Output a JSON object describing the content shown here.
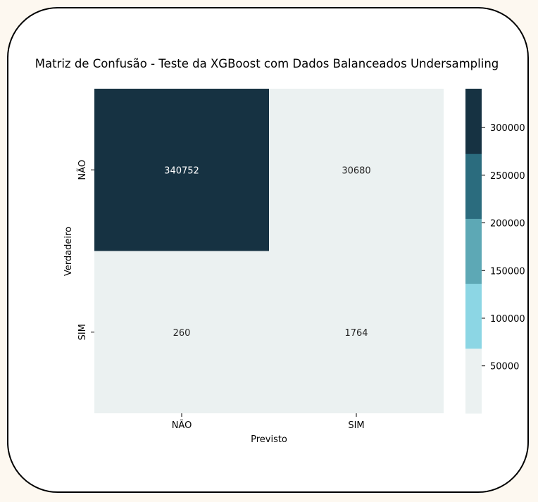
{
  "chart_data": {
    "type": "heatmap",
    "title": "Matriz de Confusão - Teste da XGBoost com Dados Balanceados Undersampling",
    "xlabel": "Previsto",
    "ylabel": "Verdadeiro",
    "x_categories": [
      "NÃO",
      "SIM"
    ],
    "y_categories": [
      "NÃO",
      "SIM"
    ],
    "values": [
      [
        340752,
        30680
      ],
      [
        260,
        1764
      ]
    ],
    "colorbar": {
      "ticks": [
        50000,
        100000,
        150000,
        200000,
        250000,
        300000
      ],
      "min": 260,
      "max": 340752,
      "colors": [
        "#ebf1f1",
        "#8cd6e4",
        "#5da8b5",
        "#2b6c7e",
        "#163242"
      ]
    },
    "cell_text_colors": {
      "dark": "#ffffff",
      "light": "#262626"
    }
  }
}
